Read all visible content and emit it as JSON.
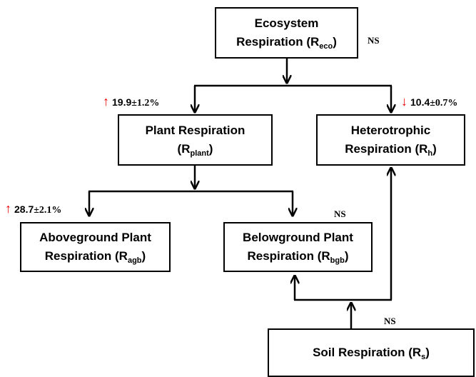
{
  "nodes": [
    {
      "line1": "Ecosystem",
      "line2": "Respiration (R",
      "sub": "eco",
      "close": ")"
    },
    {
      "line1": "Plant Respiration",
      "line2": "(R",
      "sub": "plant",
      "close": ")"
    },
    {
      "line1": "Heterotrophic",
      "line2": "Respiration (R",
      "sub": "h",
      "close": ")"
    },
    {
      "line1": "Aboveground Plant",
      "line2": "Respiration (R",
      "sub": "agb",
      "close": ")"
    },
    {
      "line1": "Belowground Plant",
      "line2": "Respiration (R",
      "sub": "bgb",
      "close": ")"
    },
    {
      "line1": "Soil Respiration (R",
      "sub": "s",
      "close": ")"
    }
  ],
  "annotations": [
    {
      "arrow": "↑",
      "value": "19.9",
      "error": "±1.2%"
    },
    {
      "arrow": "↓",
      "value": "10.4",
      "error": "±0.7%"
    },
    {
      "arrow": "↑",
      "value": "28.7",
      "error": "±2.1%"
    }
  ],
  "ns_labels": [
    "NS",
    "NS",
    "NS"
  ]
}
